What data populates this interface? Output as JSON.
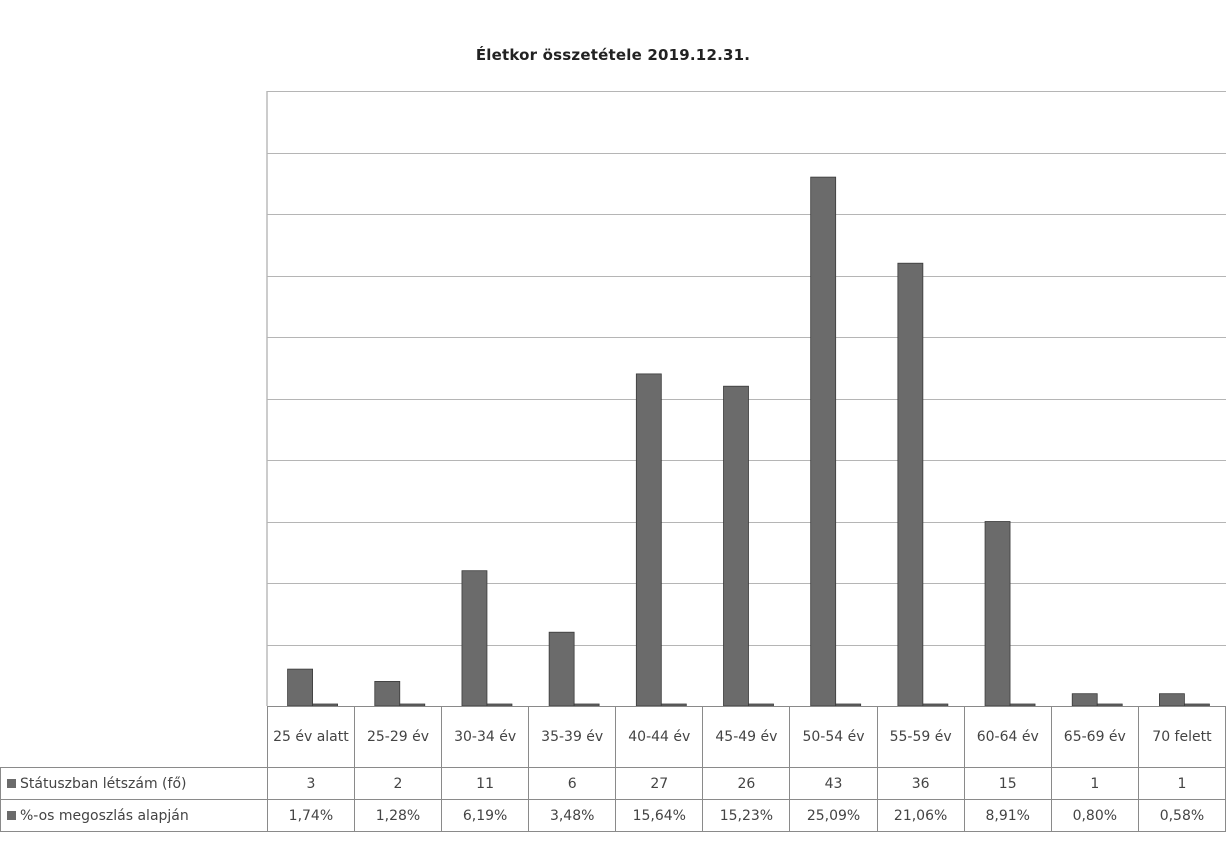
{
  "chart_data": {
    "type": "bar",
    "title": "Életkor összetétele 2019.12.31.",
    "categories": [
      "25 év alatt",
      "25-29 év",
      "30-34 év",
      "35-39 év",
      "40-44 év",
      "45-49 év",
      "50-54 év",
      "55-59 év",
      "60-64 év",
      "65-69 év",
      "70 felett"
    ],
    "series": [
      {
        "name": "Státuszban létszám (fő)",
        "values": [
          3,
          2,
          11,
          6,
          27,
          26,
          43,
          36,
          15,
          1,
          1
        ],
        "labels": [
          "3",
          "2",
          "11",
          "6",
          "27",
          "26",
          "43",
          "36",
          "15",
          "1",
          "1"
        ]
      },
      {
        "name": "%-os megoszlás alapján",
        "values": [
          1.74,
          1.28,
          6.19,
          3.48,
          15.64,
          15.23,
          25.09,
          21.06,
          8.91,
          0.8,
          0.58
        ],
        "labels": [
          "1,74%",
          "1,28%",
          "6,19%",
          "3,48%",
          "15,64%",
          "15,23%",
          "25,09%",
          "21,06%",
          "8,91%",
          "0,80%",
          "0,58%"
        ]
      }
    ],
    "ylim": [
      0,
      50
    ],
    "grid": true,
    "legend": "data table below chart",
    "colors": {
      "bar": "#6b6b6b",
      "bar_edge": "#3a3a3a",
      "grid": "#b5b5b5"
    }
  }
}
